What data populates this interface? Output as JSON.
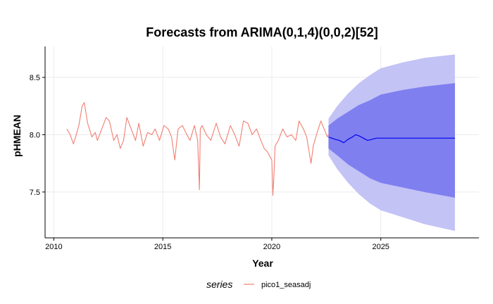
{
  "chart_data": {
    "type": "line",
    "title": "Forecasts from ARIMA(0,1,4)(0,0,2)[52]",
    "xlabel": "Year",
    "ylabel": "pHMEAN",
    "xlim": [
      2009.6,
      2029.5
    ],
    "ylim": [
      7.1,
      8.77
    ],
    "x_ticks": [
      2010,
      2015,
      2020,
      2025
    ],
    "y_ticks": [
      7.5,
      8.0,
      8.5
    ],
    "grid": true,
    "legend": {
      "title": "series",
      "placement": "bottom",
      "entries": [
        "pico1_seasadj"
      ]
    },
    "colors": {
      "observed": "#f07f72",
      "forecast": "#0000ee",
      "band80": "#7f7ff0",
      "band95": "#c3c3f5",
      "grid": "#ebebeb"
    },
    "series": [
      {
        "name": "pico1_seasadj",
        "x": [
          2010.6,
          2010.75,
          2010.9,
          2011.0,
          2011.15,
          2011.3,
          2011.4,
          2011.55,
          2011.75,
          2011.9,
          2012.0,
          2012.2,
          2012.4,
          2012.55,
          2012.75,
          2012.9,
          2013.05,
          2013.2,
          2013.35,
          2013.55,
          2013.75,
          2013.9,
          2014.1,
          2014.3,
          2014.5,
          2014.65,
          2014.85,
          2015.05,
          2015.25,
          2015.4,
          2015.55,
          2015.7,
          2015.9,
          2016.05,
          2016.25,
          2016.45,
          2016.6,
          2016.68,
          2016.72,
          2016.8,
          2017.0,
          2017.2,
          2017.45,
          2017.65,
          2017.85,
          2018.1,
          2018.3,
          2018.5,
          2018.7,
          2018.9,
          2019.1,
          2019.3,
          2019.5,
          2019.65,
          2019.8,
          2020.0,
          2020.05,
          2020.1,
          2020.15,
          2020.3,
          2020.5,
          2020.7,
          2020.9,
          2021.1,
          2021.25,
          2021.45,
          2021.6,
          2021.8,
          2021.9,
          2022.05,
          2022.25,
          2022.4,
          2022.55,
          2022.6
        ],
        "values": [
          8.05,
          8.0,
          7.92,
          7.98,
          8.08,
          8.25,
          8.28,
          8.1,
          7.98,
          8.02,
          7.95,
          8.05,
          8.15,
          8.12,
          7.95,
          8.0,
          7.88,
          7.95,
          8.15,
          8.05,
          7.95,
          8.1,
          7.9,
          8.02,
          8.0,
          8.05,
          7.95,
          8.08,
          8.05,
          7.98,
          7.78,
          8.05,
          8.08,
          8.02,
          7.95,
          8.08,
          7.95,
          7.52,
          8.05,
          8.08,
          8.0,
          7.95,
          8.1,
          7.98,
          7.92,
          8.08,
          8.0,
          7.9,
          8.12,
          8.1,
          8.0,
          8.05,
          7.95,
          7.88,
          7.85,
          7.78,
          7.47,
          7.65,
          7.9,
          7.95,
          8.05,
          7.98,
          8.0,
          7.95,
          8.12,
          8.05,
          7.98,
          7.75,
          7.9,
          8.0,
          8.12,
          8.05,
          7.98,
          8.0
        ]
      },
      {
        "name": "forecast",
        "x": [
          2022.6,
          2022.75,
          2022.9,
          2023.1,
          2023.3,
          2023.5,
          2023.7,
          2023.85,
          2024.0,
          2024.2,
          2024.4,
          2024.6,
          2024.8,
          2025.0,
          2026.0,
          2027.0,
          2028.4
        ],
        "values": [
          7.98,
          7.97,
          7.96,
          7.95,
          7.93,
          7.96,
          7.98,
          8.0,
          7.99,
          7.97,
          7.95,
          7.96,
          7.97,
          7.97,
          7.97,
          7.97,
          7.97
        ]
      }
    ],
    "forecast_band": {
      "x": [
        2022.6,
        2023.0,
        2023.5,
        2024.0,
        2024.5,
        2025.0,
        2026.0,
        2027.0,
        2028.4
      ],
      "lower80": [
        7.88,
        7.82,
        7.74,
        7.68,
        7.62,
        7.58,
        7.54,
        7.5,
        7.45
      ],
      "upper80": [
        8.08,
        8.14,
        8.2,
        8.26,
        8.3,
        8.35,
        8.39,
        8.42,
        8.45
      ],
      "lower95": [
        7.82,
        7.7,
        7.58,
        7.48,
        7.4,
        7.34,
        7.28,
        7.22,
        7.16
      ],
      "upper95": [
        8.14,
        8.25,
        8.36,
        8.45,
        8.52,
        8.58,
        8.63,
        8.67,
        8.7
      ]
    }
  }
}
